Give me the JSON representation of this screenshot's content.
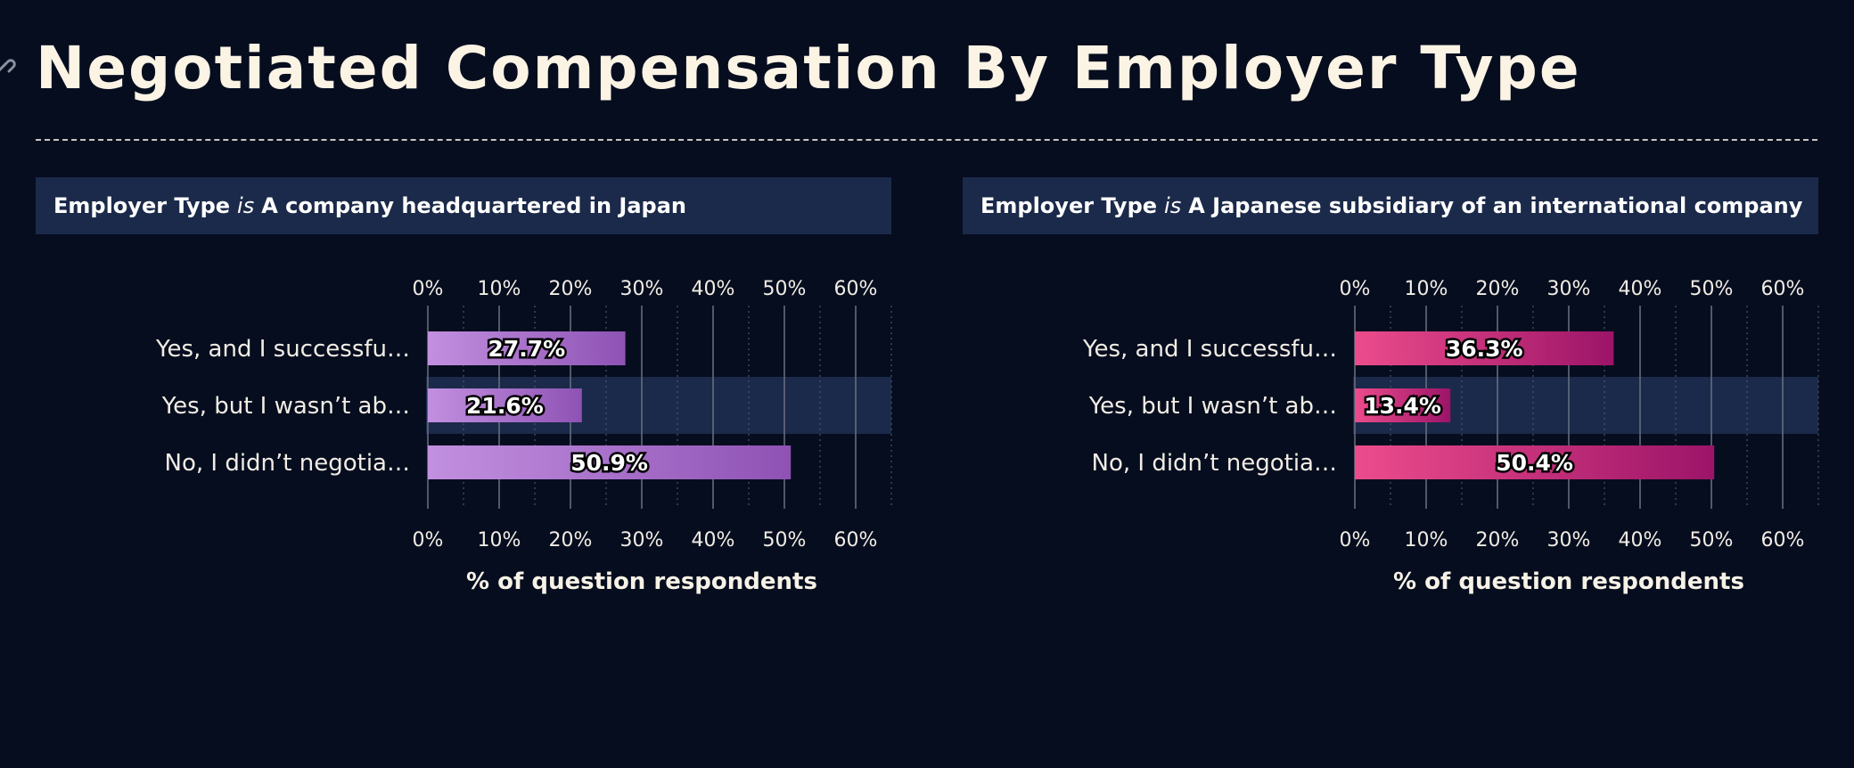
{
  "page": {
    "title": "Negotiated Compensation By Employer Type"
  },
  "x_axis": {
    "title": "% of question respondents",
    "tick_labels": [
      "0%",
      "10%",
      "20%",
      "30%",
      "40%",
      "50%",
      "60%"
    ]
  },
  "facets": [
    {
      "header_field": "Employer Type",
      "header_keyword": "is",
      "header_value": "A company headquartered in Japan"
    },
    {
      "header_field": "Employer Type",
      "header_keyword": "is",
      "header_value": "A Japanese subsidiary of an international company"
    }
  ],
  "colors": {
    "background": "#060d1f",
    "header_bg": "#1b2a4a",
    "highlight_row": "#1b2a4a",
    "facet1_bar_start": "#c290e0",
    "facet1_bar_end": "#8e52b4",
    "facet2_bar_start": "#ec4c8c",
    "facet2_bar_end": "#9c1468"
  },
  "chart_data": [
    {
      "type": "bar",
      "orientation": "horizontal",
      "categories": [
        "Yes, and I successfu…",
        "Yes, but I wasn’t ab…",
        "No, I didn’t negotia…"
      ],
      "values": [
        27.7,
        21.6,
        50.9
      ],
      "value_labels": [
        "27.7%",
        "21.6%",
        "50.9%"
      ],
      "xlim": [
        0,
        65
      ],
      "xlabel": "% of question respondents",
      "grid": true,
      "highlighted_category_index": 1
    },
    {
      "type": "bar",
      "orientation": "horizontal",
      "categories": [
        "Yes, and I successfu…",
        "Yes, but I wasn’t ab…",
        "No, I didn’t negotia…"
      ],
      "values": [
        36.3,
        13.4,
        50.4
      ],
      "value_labels": [
        "36.3%",
        "13.4%",
        "50.4%"
      ],
      "xlim": [
        0,
        65
      ],
      "xlabel": "% of question respondents",
      "grid": true,
      "highlighted_category_index": 1
    }
  ]
}
